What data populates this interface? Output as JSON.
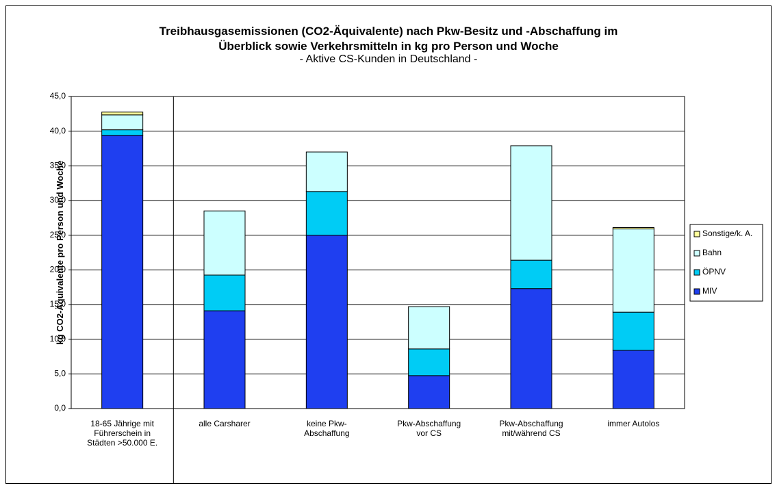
{
  "chart_data": {
    "type": "stacked_bar",
    "title": "Treibhausgasemissionen (CO2-Äquivalente) nach Pkw-Besitz und -Abschaffung im\nÜberblick sowie Verkehrsmitteln in kg pro Person und Woche",
    "subtitle": "- Aktive CS-Kunden in Deutschland -",
    "y_label": "kg CO2-Äquivalente pro Person und Woche",
    "categories": [
      "18-65 Jährige mit\nFührerschein in\nStädten >50.000 E.",
      "alle Carsharer",
      "keine Pkw-\nAbschaffung",
      "Pkw-Abschaffung\nvor CS",
      "Pkw-Abschaffung\nmit/während CS",
      "immer Autolos"
    ],
    "series": [
      {
        "name": "MIV",
        "color": "#1f3ff0",
        "values": [
          39.4,
          14.1,
          25.0,
          4.75,
          17.3,
          8.4
        ]
      },
      {
        "name": "ÖPNV",
        "color": "#00ccf5",
        "values": [
          0.8,
          5.15,
          6.3,
          3.85,
          4.1,
          5.5
        ]
      },
      {
        "name": "Bahn",
        "color": "#ccffff",
        "values": [
          2.15,
          9.25,
          5.7,
          6.1,
          16.5,
          12.0
        ]
      },
      {
        "name": "Sonstige/k. A.",
        "color": "#ffff99",
        "values": [
          0.4,
          0,
          0,
          0,
          0,
          0.2
        ]
      }
    ],
    "ylim": [
      0,
      45
    ],
    "yticks": [
      {
        "value": 0,
        "label": "0,0"
      },
      {
        "value": 5,
        "label": "5,0"
      },
      {
        "value": 10,
        "label": "10,0"
      },
      {
        "value": 15,
        "label": "15,0"
      },
      {
        "value": 20,
        "label": "20,0"
      },
      {
        "value": 25,
        "label": "25,0"
      },
      {
        "value": 30,
        "label": "30,0"
      },
      {
        "value": 35,
        "label": "35,0"
      },
      {
        "value": 40,
        "label": "40,0"
      },
      {
        "value": 45,
        "label": "45,0"
      }
    ],
    "grid": true,
    "legend": "right"
  }
}
